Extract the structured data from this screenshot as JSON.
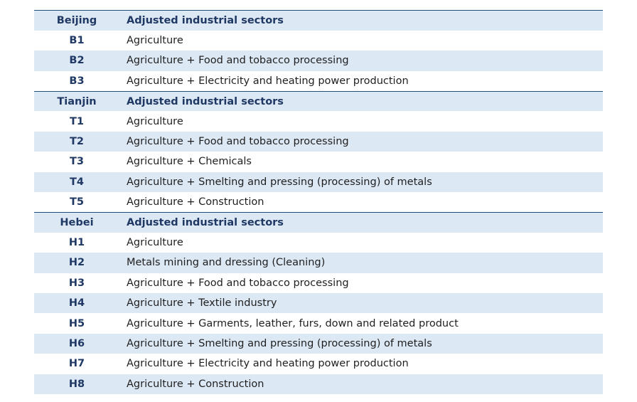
{
  "groups": [
    {
      "region": "Beijing",
      "header": "Adjusted industrial sectors",
      "rows": [
        {
          "code": "B1",
          "sectors": "Agriculture"
        },
        {
          "code": "B2",
          "sectors": "Agriculture + Food and tobacco processing"
        },
        {
          "code": "B3",
          "sectors": "Agriculture + Electricity and heating power production"
        }
      ]
    },
    {
      "region": "Tianjin",
      "header": "Adjusted industrial sectors",
      "rows": [
        {
          "code": "T1",
          "sectors": "Agriculture"
        },
        {
          "code": "T2",
          "sectors": "Agriculture + Food and tobacco processing"
        },
        {
          "code": "T3",
          "sectors": "Agriculture + Chemicals"
        },
        {
          "code": "T4",
          "sectors": "Agriculture + Smelting and pressing (processing) of metals"
        },
        {
          "code": "T5",
          "sectors": "Agriculture + Construction"
        }
      ]
    },
    {
      "region": "Hebei",
      "header": "Adjusted industrial sectors",
      "rows": [
        {
          "code": "H1",
          "sectors": "Agriculture"
        },
        {
          "code": "H2",
          "sectors": "Metals mining and dressing (Cleaning)"
        },
        {
          "code": "H3",
          "sectors": "Agriculture + Food and tobacco processing"
        },
        {
          "code": "H4",
          "sectors": "Agriculture + Textile industry"
        },
        {
          "code": "H5",
          "sectors": "Agriculture + Garments, leather, furs, down and related product"
        },
        {
          "code": "H6",
          "sectors": "Agriculture + Smelting and pressing (processing) of metals"
        },
        {
          "code": "H7",
          "sectors": "Agriculture + Electricity and heating power production"
        },
        {
          "code": "H8",
          "sectors": "Agriculture + Construction"
        }
      ]
    }
  ]
}
